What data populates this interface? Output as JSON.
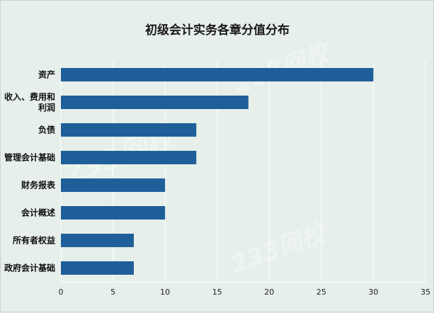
{
  "chart_data": {
    "type": "bar",
    "orientation": "horizontal",
    "title": "初级会计实务各章分值分布",
    "categories": [
      "资产",
      "收入、费用和利润",
      "负债",
      "管理会计基础",
      "财务报表",
      "会计概述",
      "所有者权益",
      "政府会计基础"
    ],
    "category_lines": [
      [
        "资产"
      ],
      [
        "收入、费用和",
        "利润"
      ],
      [
        "负债"
      ],
      [
        "管理会计基础"
      ],
      [
        "财务报表"
      ],
      [
        "会计概述"
      ],
      [
        "所有者权益"
      ],
      [
        "政府会计基础"
      ]
    ],
    "values": [
      30,
      18,
      13,
      13,
      10,
      10,
      7,
      7
    ],
    "xlim": [
      0,
      35
    ],
    "xticks": [
      0,
      5,
      10,
      15,
      20,
      25,
      30,
      35
    ],
    "xlabel": "",
    "ylabel": "",
    "grid": true,
    "legend": "none",
    "bar_color": "#1f5f99",
    "grid_color": "#ffffff",
    "background": "#e6efea"
  },
  "watermark": "233网校"
}
